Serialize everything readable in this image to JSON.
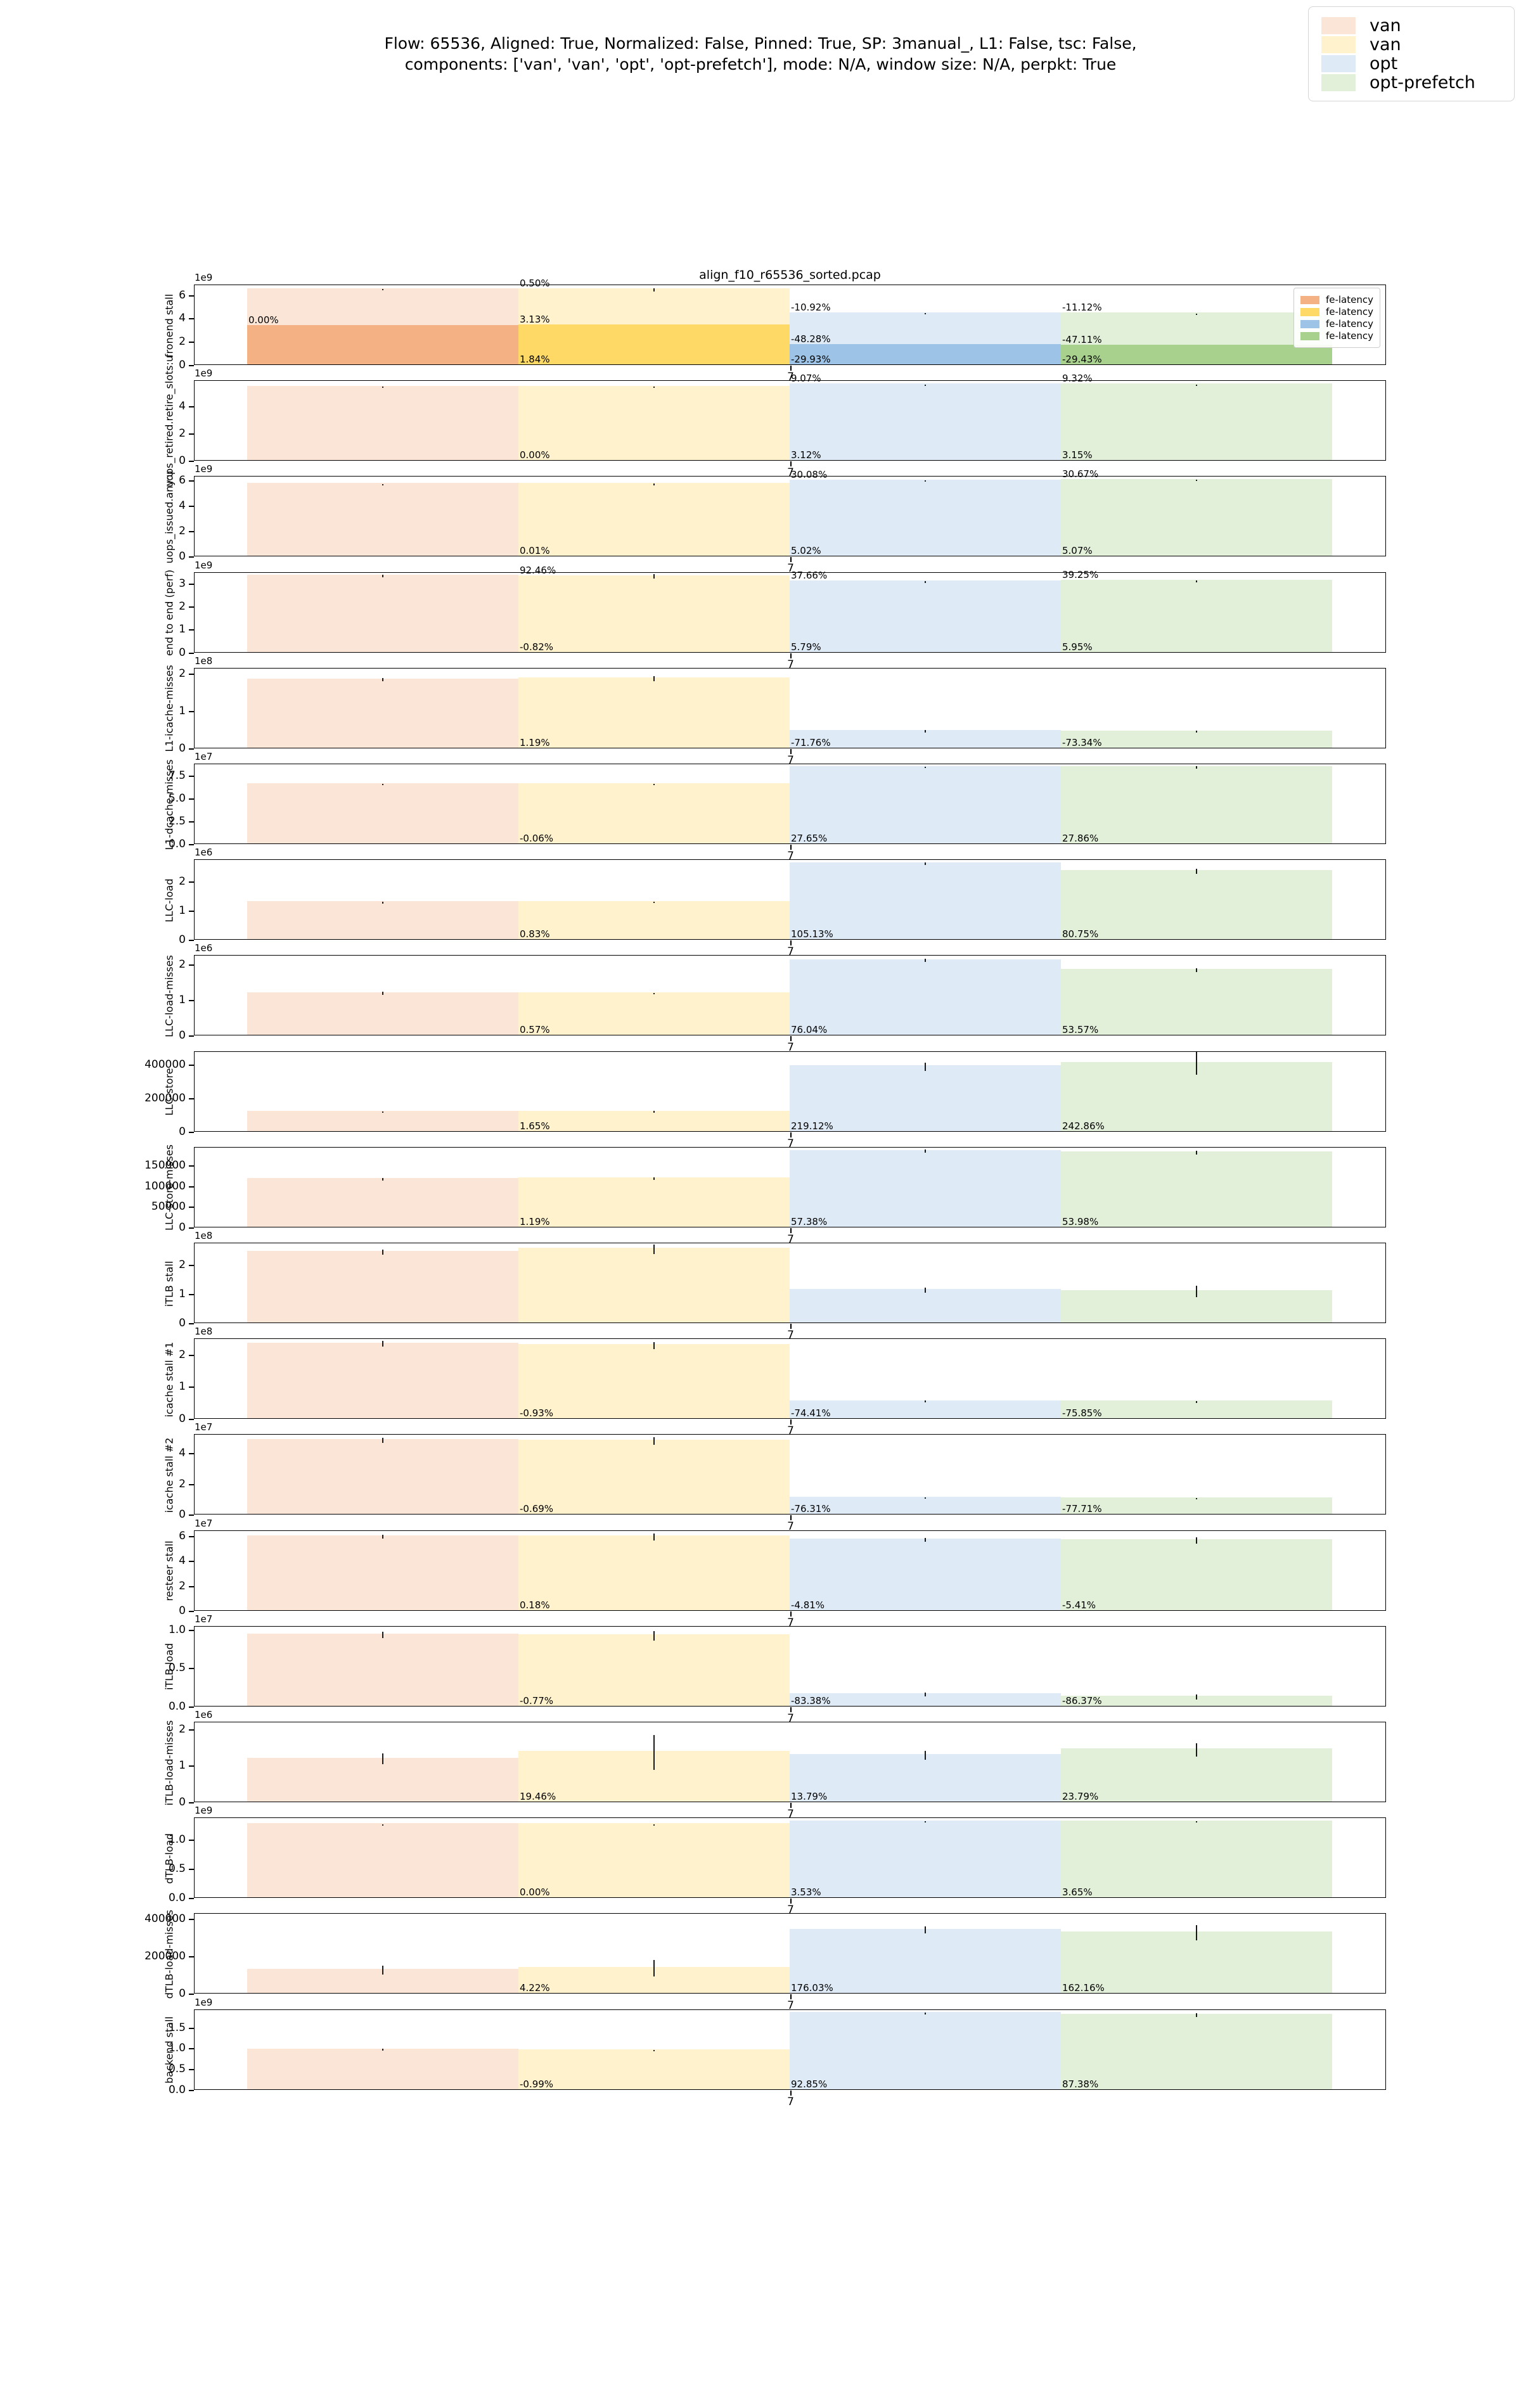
{
  "figure_title": {
    "line1": "Flow: 65536, Aligned: True, Normalized: False, Pinned: True, SP: 3manual_, L1: False, tsc: False,",
    "line2": "components: ['van', 'van', 'opt', 'opt-prefetch'], mode: N/A, window size: N/A, perpkt: True"
  },
  "colors": {
    "bar_light": [
      "#fbe5d6",
      "#fff2cc",
      "#deeaf6",
      "#e2efd9"
    ],
    "bar_dark": [
      "#f4b183",
      "#ffd966",
      "#9dc3e6",
      "#a9d18e"
    ],
    "axis": "#000000",
    "error_bar": "#1a1a1a"
  },
  "legend": {
    "entries": [
      {
        "label": "van",
        "color": "#fbe5d6"
      },
      {
        "label": "van",
        "color": "#fff2cc"
      },
      {
        "label": "opt",
        "color": "#deeaf6"
      },
      {
        "label": "opt-prefetch",
        "color": "#e2efd9"
      }
    ]
  },
  "inner_legend": {
    "entries": [
      {
        "label": "fe-latency",
        "color": "#f4b183"
      },
      {
        "label": "fe-latency",
        "color": "#ffd966"
      },
      {
        "label": "fe-latency",
        "color": "#9dc3e6"
      },
      {
        "label": "fe-latency",
        "color": "#a9d18e"
      }
    ]
  },
  "chart_data": [
    {
      "type": "bar",
      "title": "align_f10_r65536_sorted.pcap",
      "ylabel": "fronend stall",
      "offset": "1e9",
      "ymax": 6900000000.0,
      "yticks": [
        {
          "v": 0,
          "l": "0"
        },
        {
          "v": 2000000000.0,
          "l": "2"
        },
        {
          "v": 4000000000.0,
          "l": "4"
        },
        {
          "v": 6000000000.0,
          "l": "6"
        }
      ],
      "bars": [
        6500000000.0,
        6500000000.0,
        4450000000.0,
        4430000000.0
      ],
      "dark": [
        3350000000.0,
        3400000000.0,
        1720000000.0,
        1700000000.0
      ],
      "err": [
        50000000.0,
        120000000.0,
        40000000.0,
        40000000.0
      ],
      "xtick": "7",
      "inner_legend": true,
      "ann": [
        {
          "g": 0,
          "pos": "mid",
          "t": "0.00%"
        },
        {
          "g": 1,
          "pos": "top",
          "t": "0.50%"
        },
        {
          "g": 1,
          "pos": "mid",
          "t": "3.13%"
        },
        {
          "g": 1,
          "pos": "bot",
          "t": "1.84%"
        },
        {
          "g": 2,
          "pos": "top",
          "t": "-10.92%"
        },
        {
          "g": 2,
          "pos": "mid",
          "t": "-48.28%"
        },
        {
          "g": 2,
          "pos": "bot",
          "t": "-29.93%"
        },
        {
          "g": 3,
          "pos": "top",
          "t": "-11.12%"
        },
        {
          "g": 3,
          "pos": "mid",
          "t": "-47.11%"
        },
        {
          "g": 3,
          "pos": "bot",
          "t": "-29.43%"
        }
      ]
    },
    {
      "type": "bar",
      "ylabel": "uops_retired.retire_slots:u",
      "offset": "1e9",
      "ymax": 5900000000.0,
      "yticks": [
        {
          "v": 0,
          "l": "0"
        },
        {
          "v": 2000000000.0,
          "l": "2"
        },
        {
          "v": 4000000000.0,
          "l": "4"
        }
      ],
      "bars": [
        5450000000.0,
        5450000000.0,
        5620000000.0,
        5620000000.0
      ],
      "dark": null,
      "err": [
        30000000.0,
        30000000.0,
        30000000.0,
        30000000.0
      ],
      "xtick": "7",
      "ann": [
        {
          "g": 1,
          "pos": "bot",
          "t": "0.00%"
        },
        {
          "g": 2,
          "pos": "top",
          "t": "9.07%"
        },
        {
          "g": 2,
          "pos": "bot",
          "t": "3.12%"
        },
        {
          "g": 3,
          "pos": "top",
          "t": "9.32%"
        },
        {
          "g": 3,
          "pos": "bot",
          "t": "3.15%"
        }
      ]
    },
    {
      "type": "bar",
      "ylabel": "uops_issued.any:u",
      "offset": "1e9",
      "ymax": 6350000000.0,
      "yticks": [
        {
          "v": 0,
          "l": "0"
        },
        {
          "v": 2000000000.0,
          "l": "2"
        },
        {
          "v": 4000000000.0,
          "l": "4"
        },
        {
          "v": 6000000000.0,
          "l": "6"
        }
      ],
      "bars": [
        5750000000.0,
        5750000000.0,
        6040000000.0,
        6070000000.0
      ],
      "dark": null,
      "err": [
        40000000.0,
        60000000.0,
        30000000.0,
        30000000.0
      ],
      "xtick": "7",
      "ann": [
        {
          "g": 1,
          "pos": "bot",
          "t": "0.01%"
        },
        {
          "g": 2,
          "pos": "top",
          "t": "30.08%"
        },
        {
          "g": 2,
          "pos": "bot",
          "t": "5.02%"
        },
        {
          "g": 3,
          "pos": "top",
          "t": "30.67%"
        },
        {
          "g": 3,
          "pos": "bot",
          "t": "5.07%"
        }
      ]
    },
    {
      "type": "bar",
      "ylabel": "end to end (perf)",
      "offset": "1e9",
      "ymax": 3500000000.0,
      "yticks": [
        {
          "v": 0,
          "l": "0"
        },
        {
          "v": 1000000000.0,
          "l": "1"
        },
        {
          "v": 2000000000.0,
          "l": "2"
        },
        {
          "v": 3000000000.0,
          "l": "3"
        }
      ],
      "bars": [
        3350000000.0,
        3330000000.0,
        3100000000.0,
        3120000000.0
      ],
      "dark": null,
      "err": [
        50000000.0,
        90000000.0,
        40000000.0,
        50000000.0
      ],
      "xtick": "7",
      "ann": [
        {
          "g": 1,
          "pos": "top",
          "t": "92.46%"
        },
        {
          "g": 1,
          "pos": "bot",
          "t": "-0.82%"
        },
        {
          "g": 2,
          "pos": "top",
          "t": "37.66%"
        },
        {
          "g": 2,
          "pos": "bot",
          "t": "5.79%"
        },
        {
          "g": 3,
          "pos": "top",
          "t": "39.25%"
        },
        {
          "g": 3,
          "pos": "bot",
          "t": "5.95%"
        }
      ]
    },
    {
      "type": "bar",
      "ylabel": "L1-icache-misses",
      "offset": "1e8",
      "ymax": 215000000.0,
      "yticks": [
        {
          "v": 0,
          "l": "0"
        },
        {
          "v": 100000000.0,
          "l": "1"
        },
        {
          "v": 200000000.0,
          "l": "2"
        }
      ],
      "bars": [
        185000000.0,
        187000000.0,
        47000000.0,
        46000000.0
      ],
      "dark": null,
      "err": [
        5000000.0,
        7000000.0,
        4000000.0,
        3000000.0
      ],
      "xtick": "7",
      "ann": [
        {
          "g": 1,
          "pos": "bot",
          "t": "1.19%"
        },
        {
          "g": 2,
          "pos": "bot",
          "t": "-71.76%"
        },
        {
          "g": 3,
          "pos": "bot",
          "t": "-73.34%"
        }
      ]
    },
    {
      "type": "bar",
      "ylabel": "L1-dcache-misses",
      "offset": "1e7",
      "ymax": 88000000.0,
      "yticks": [
        {
          "v": 0,
          "l": "0.0"
        },
        {
          "v": 25000000.0,
          "l": "2.5"
        },
        {
          "v": 50000000.0,
          "l": "5.0"
        },
        {
          "v": 75000000.0,
          "l": "7.5"
        }
      ],
      "bars": [
        66000000.0,
        66000000.0,
        84500000.0,
        84500000.0
      ],
      "dark": null,
      "err": [
        800000.0,
        800000.0,
        1000000.0,
        1500000.0
      ],
      "xtick": "7",
      "ann": [
        {
          "g": 1,
          "pos": "bot",
          "t": "-0.06%"
        },
        {
          "g": 2,
          "pos": "bot",
          "t": "27.65%"
        },
        {
          "g": 3,
          "pos": "bot",
          "t": "27.86%"
        }
      ]
    },
    {
      "type": "bar",
      "ylabel": "LLC-load",
      "offset": "1e6",
      "ymax": 2750000.0,
      "yticks": [
        {
          "v": 0,
          "l": "0"
        },
        {
          "v": 1000000.0,
          "l": "1"
        },
        {
          "v": 2000000.0,
          "l": "2"
        }
      ],
      "bars": [
        1300000.0,
        1300000.0,
        2620000.0,
        2360000.0
      ],
      "dark": null,
      "err": [
        30000.0,
        15000.0,
        50000.0,
        90000.0
      ],
      "xtick": "7",
      "ann": [
        {
          "g": 1,
          "pos": "bot",
          "t": "0.83%"
        },
        {
          "g": 2,
          "pos": "bot",
          "t": "105.13%"
        },
        {
          "g": 3,
          "pos": "bot",
          "t": "80.75%"
        }
      ]
    },
    {
      "type": "bar",
      "ylabel": "LLC-load-misses",
      "offset": "1e6",
      "ymax": 2250000.0,
      "yticks": [
        {
          "v": 0,
          "l": "0"
        },
        {
          "v": 1000000.0,
          "l": "1"
        },
        {
          "v": 2000000.0,
          "l": "2"
        }
      ],
      "bars": [
        1200000.0,
        1200000.0,
        2120000.0,
        1850000.0
      ],
      "dark": null,
      "err": [
        40000.0,
        8000.0,
        40000.0,
        60000.0
      ],
      "xtick": "7",
      "ann": [
        {
          "g": 1,
          "pos": "bot",
          "t": "0.57%"
        },
        {
          "g": 2,
          "pos": "bot",
          "t": "76.04%"
        },
        {
          "g": 3,
          "pos": "bot",
          "t": "53.57%"
        }
      ]
    },
    {
      "type": "bar",
      "ylabel": "LLC-store",
      "offset": null,
      "ymax": 480000,
      "yticks": [
        {
          "v": 0,
          "l": "0"
        },
        {
          "v": 200000,
          "l": "200000"
        },
        {
          "v": 400000,
          "l": "400000"
        }
      ],
      "bars": [
        120000,
        121000,
        390000,
        411000
      ],
      "dark": null,
      "err": [
        4000,
        5000,
        24000,
        70000
      ],
      "xtick": "7",
      "ann": [
        {
          "g": 1,
          "pos": "bot",
          "t": "1.65%"
        },
        {
          "g": 2,
          "pos": "bot",
          "t": "219.12%"
        },
        {
          "g": 3,
          "pos": "bot",
          "t": "242.86%"
        }
      ]
    },
    {
      "type": "bar",
      "ylabel": "LLC-store-misses",
      "offset": null,
      "ymax": 195000,
      "yticks": [
        {
          "v": 0,
          "l": "0"
        },
        {
          "v": 50000,
          "l": "50000"
        },
        {
          "v": 100000,
          "l": "100000"
        },
        {
          "v": 150000,
          "l": "150000"
        }
      ],
      "bars": [
        118000,
        120000,
        186000,
        183000
      ],
      "dark": null,
      "err": [
        3500,
        3000,
        4000,
        4500
      ],
      "xtick": "7",
      "ann": [
        {
          "g": 1,
          "pos": "bot",
          "t": "1.19%"
        },
        {
          "g": 2,
          "pos": "bot",
          "t": "57.38%"
        },
        {
          "g": 3,
          "pos": "bot",
          "t": "53.98%"
        }
      ]
    },
    {
      "type": "bar",
      "ylabel": "iTLB stall",
      "offset": "1e8",
      "ymax": 275000000.0,
      "yticks": [
        {
          "v": 0,
          "l": "0"
        },
        {
          "v": 100000000.0,
          "l": "1"
        },
        {
          "v": 200000000.0,
          "l": "2"
        }
      ],
      "bars": [
        245000000.0,
        255000000.0,
        115000000.0,
        110000000.0
      ],
      "dark": null,
      "err": [
        8000000.0,
        16000000.0,
        8000000.0,
        20000000.0
      ],
      "xtick": "7",
      "ann": []
    },
    {
      "type": "bar",
      "ylabel": "icache stall #1",
      "offset": "1e8",
      "ymax": 250000000.0,
      "yticks": [
        {
          "v": 0,
          "l": "0"
        },
        {
          "v": 100000000.0,
          "l": "1"
        },
        {
          "v": 200000000.0,
          "l": "2"
        }
      ],
      "bars": [
        235000000.0,
        230000000.0,
        56000000.0,
        55000000.0
      ],
      "dark": null,
      "err": [
        9000000.0,
        11000000.0,
        3000000.0,
        3000000.0
      ],
      "xtick": "7",
      "ann": [
        {
          "g": 1,
          "pos": "bot",
          "t": "-0.93%"
        },
        {
          "g": 2,
          "pos": "bot",
          "t": "-74.41%"
        },
        {
          "g": 3,
          "pos": "bot",
          "t": "-75.85%"
        }
      ]
    },
    {
      "type": "bar",
      "ylabel": "icache stall #2",
      "offset": "1e7",
      "ymax": 52000000.0,
      "yticks": [
        {
          "v": 0,
          "l": "0"
        },
        {
          "v": 20000000.0,
          "l": "2"
        },
        {
          "v": 40000000.0,
          "l": "4"
        }
      ],
      "bars": [
        48500000.0,
        48000000.0,
        11200000.0,
        10800000.0
      ],
      "dark": null,
      "err": [
        1500000.0,
        2500000.0,
        500000.0,
        500000.0
      ],
      "xtick": "7",
      "ann": [
        {
          "g": 1,
          "pos": "bot",
          "t": "-0.69%"
        },
        {
          "g": 2,
          "pos": "bot",
          "t": "-76.31%"
        },
        {
          "g": 3,
          "pos": "bot",
          "t": "-77.71%"
        }
      ]
    },
    {
      "type": "bar",
      "ylabel": "resteer stall",
      "offset": "1e7",
      "ymax": 65000000.0,
      "yticks": [
        {
          "v": 0,
          "l": "0"
        },
        {
          "v": 20000000.0,
          "l": "2"
        },
        {
          "v": 40000000.0,
          "l": "4"
        },
        {
          "v": 60000000.0,
          "l": "6"
        }
      ],
      "bars": [
        60000000.0,
        60000000.0,
        57500000.0,
        57000000.0
      ],
      "dark": null,
      "err": [
        1500000.0,
        3000000.0,
        1500000.0,
        2500000.0
      ],
      "xtick": "7",
      "ann": [
        {
          "g": 1,
          "pos": "bot",
          "t": "0.18%"
        },
        {
          "g": 2,
          "pos": "bot",
          "t": "-4.81%"
        },
        {
          "g": 3,
          "pos": "bot",
          "t": "-5.41%"
        }
      ]
    },
    {
      "type": "bar",
      "ylabel": "iTLB-load",
      "offset": "1e7",
      "ymax": 10500000.0,
      "yticks": [
        {
          "v": 0,
          "l": "0.0"
        },
        {
          "v": 5000000.0,
          "l": "0.5"
        },
        {
          "v": 10000000.0,
          "l": "1.0"
        }
      ],
      "bars": [
        9400000.0,
        9300000.0,
        1600000.0,
        1300000.0
      ],
      "dark": null,
      "err": [
        400000.0,
        600000.0,
        250000.0,
        350000.0
      ],
      "xtick": "7",
      "ann": [
        {
          "g": 1,
          "pos": "bot",
          "t": "-0.77%"
        },
        {
          "g": 2,
          "pos": "bot",
          "t": "-83.38%"
        },
        {
          "g": 3,
          "pos": "bot",
          "t": "-86.37%"
        }
      ]
    },
    {
      "type": "bar",
      "ylabel": "iTLB-load-misses",
      "offset": "1e6",
      "ymax": 2200000.0,
      "yticks": [
        {
          "v": 0,
          "l": "0"
        },
        {
          "v": 1000000.0,
          "l": "1"
        },
        {
          "v": 2000000.0,
          "l": "2"
        }
      ],
      "bars": [
        1200000.0,
        1380000.0,
        1300000.0,
        1450000.0
      ],
      "dark": null,
      "err": [
        150000.0,
        480000.0,
        120000.0,
        180000.0
      ],
      "xtick": "7",
      "ann": [
        {
          "g": 1,
          "pos": "bot",
          "t": "19.46%"
        },
        {
          "g": 2,
          "pos": "bot",
          "t": "13.79%"
        },
        {
          "g": 3,
          "pos": "bot",
          "t": "23.79%"
        }
      ]
    },
    {
      "type": "bar",
      "ylabel": "dTLB-load",
      "offset": "1e9",
      "ymax": 1380000000.0,
      "yticks": [
        {
          "v": 0,
          "l": "0.0"
        },
        {
          "v": 500000000.0,
          "l": "0.5"
        },
        {
          "v": 1000000000.0,
          "l": "1.0"
        }
      ],
      "bars": [
        1270000000.0,
        1270000000.0,
        1315000000.0,
        1315000000.0
      ],
      "dark": null,
      "err": [
        8000000.0,
        8000000.0,
        8000000.0,
        8000000.0
      ],
      "xtick": "7",
      "ann": [
        {
          "g": 1,
          "pos": "bot",
          "t": "0.00%"
        },
        {
          "g": 2,
          "pos": "bot",
          "t": "3.53%"
        },
        {
          "g": 3,
          "pos": "bot",
          "t": "3.65%"
        }
      ]
    },
    {
      "type": "bar",
      "ylabel": "dTLB-load-misses",
      "offset": null,
      "ymax": 430000,
      "yticks": [
        {
          "v": 0,
          "l": "0"
        },
        {
          "v": 200000,
          "l": "200000"
        },
        {
          "v": 400000,
          "l": "400000"
        }
      ],
      "bars": [
        130000,
        140000,
        345000,
        330000
      ],
      "dark": null,
      "err": [
        25000,
        45000,
        20000,
        40000
      ],
      "xtick": "7",
      "ann": [
        {
          "g": 1,
          "pos": "bot",
          "t": "4.22%"
        },
        {
          "g": 2,
          "pos": "bot",
          "t": "176.03%"
        },
        {
          "g": 3,
          "pos": "bot",
          "t": "162.16%"
        }
      ]
    },
    {
      "type": "bar",
      "ylabel": "backend stall",
      "offset": "1e9",
      "ymax": 1950000000.0,
      "yticks": [
        {
          "v": 0,
          "l": "0.0"
        },
        {
          "v": 500000000.0,
          "l": "0.5"
        },
        {
          "v": 1000000000.0,
          "l": "1.0"
        },
        {
          "v": 1500000000.0,
          "l": "1.5"
        }
      ],
      "bars": [
        980000000.0,
        960000000.0,
        1860000000.0,
        1820000000.0
      ],
      "dark": null,
      "err": [
        20000000.0,
        20000000.0,
        30000000.0,
        40000000.0
      ],
      "xtick": "7",
      "ann": [
        {
          "g": 1,
          "pos": "bot",
          "t": "-0.99%"
        },
        {
          "g": 2,
          "pos": "bot",
          "t": "92.85%"
        },
        {
          "g": 3,
          "pos": "bot",
          "t": "87.38%"
        }
      ]
    }
  ]
}
